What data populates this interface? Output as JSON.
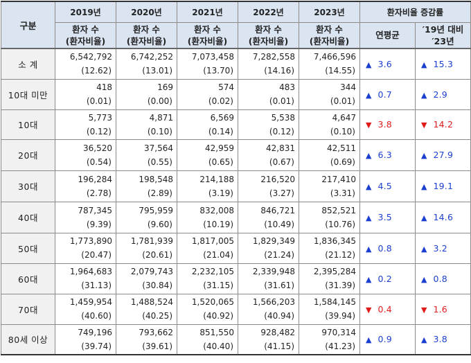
{
  "header": {
    "category": "구분",
    "years": [
      "2019년",
      "2020년",
      "2021년",
      "2022년",
      "2023년"
    ],
    "patients_label": "환자 수",
    "ratio_label": "(환자비율)",
    "change_group": "환자비율 증감률",
    "annual_avg": "연평균",
    "vs_line1": "′19년 대비",
    "vs_line2": "′23년"
  },
  "rows": [
    {
      "label": "소 계",
      "values": [
        {
          "n": "6,542,792",
          "r": "(12.62)"
        },
        {
          "n": "6,742,252",
          "r": "(13.01)"
        },
        {
          "n": "7,073,458",
          "r": "(13.70)"
        },
        {
          "n": "7,282,558",
          "r": "(14.16)"
        },
        {
          "n": "7,466,596",
          "r": "(14.55)"
        }
      ],
      "avg": {
        "dir": "up",
        "sym": "▲",
        "val": "3.6"
      },
      "vs": {
        "dir": "up",
        "sym": "▲",
        "val": "15.3"
      }
    },
    {
      "label": "10대 미만",
      "values": [
        {
          "n": "418",
          "r": "(0.01)"
        },
        {
          "n": "169",
          "r": "(0.00)"
        },
        {
          "n": "574",
          "r": "(0.02)"
        },
        {
          "n": "483",
          "r": "(0.01)"
        },
        {
          "n": "344",
          "r": "(0.01)"
        }
      ],
      "avg": {
        "dir": "up",
        "sym": "▲",
        "val": "0.7"
      },
      "vs": {
        "dir": "up",
        "sym": "▲",
        "val": "2.9"
      }
    },
    {
      "label": "10대",
      "values": [
        {
          "n": "5,773",
          "r": "(0.12)"
        },
        {
          "n": "4,871",
          "r": "(0.10)"
        },
        {
          "n": "6,569",
          "r": "(0.14)"
        },
        {
          "n": "5,538",
          "r": "(0.12)"
        },
        {
          "n": "4,647",
          "r": "(0.10)"
        }
      ],
      "avg": {
        "dir": "down",
        "sym": "▼",
        "val": "3.8"
      },
      "vs": {
        "dir": "down",
        "sym": "▼",
        "val": "14.2"
      }
    },
    {
      "label": "20대",
      "values": [
        {
          "n": "36,520",
          "r": "(0.54)"
        },
        {
          "n": "37,564",
          "r": "(0.55)"
        },
        {
          "n": "42,959",
          "r": "(0.65)"
        },
        {
          "n": "42,831",
          "r": "(0.67)"
        },
        {
          "n": "42,511",
          "r": "(0.69)"
        }
      ],
      "avg": {
        "dir": "up",
        "sym": "▲",
        "val": "6.3"
      },
      "vs": {
        "dir": "up",
        "sym": "▲",
        "val": "27.9"
      }
    },
    {
      "label": "30대",
      "values": [
        {
          "n": "196,284",
          "r": "(2.78)"
        },
        {
          "n": "198,548",
          "r": "(2.89)"
        },
        {
          "n": "214,188",
          "r": "(3.19)"
        },
        {
          "n": "216,520",
          "r": "(3.27)"
        },
        {
          "n": "217,410",
          "r": "(3.31)"
        }
      ],
      "avg": {
        "dir": "up",
        "sym": "▲",
        "val": "4.5"
      },
      "vs": {
        "dir": "up",
        "sym": "▲",
        "val": "19.1"
      }
    },
    {
      "label": "40대",
      "values": [
        {
          "n": "787,345",
          "r": "(9.39)"
        },
        {
          "n": "795,959",
          "r": "(9.60)"
        },
        {
          "n": "832,008",
          "r": "(10.19)"
        },
        {
          "n": "846,721",
          "r": "(10.49)"
        },
        {
          "n": "852,521",
          "r": "(10.76)"
        }
      ],
      "avg": {
        "dir": "up",
        "sym": "▲",
        "val": "3.5"
      },
      "vs": {
        "dir": "up",
        "sym": "▲",
        "val": "14.6"
      }
    },
    {
      "label": "50대",
      "values": [
        {
          "n": "1,773,890",
          "r": "(20.47)"
        },
        {
          "n": "1,781,939",
          "r": "(20.61)"
        },
        {
          "n": "1,817,005",
          "r": "(21.04)"
        },
        {
          "n": "1,829,349",
          "r": "(21.24)"
        },
        {
          "n": "1,836,345",
          "r": "(21.12)"
        }
      ],
      "avg": {
        "dir": "up",
        "sym": "▲",
        "val": "0.8"
      },
      "vs": {
        "dir": "up",
        "sym": "▲",
        "val": "3.2"
      }
    },
    {
      "label": "60대",
      "values": [
        {
          "n": "1,964,683",
          "r": "(31.13)"
        },
        {
          "n": "2,079,743",
          "r": "(30.84)"
        },
        {
          "n": "2,232,105",
          "r": "(31.15)"
        },
        {
          "n": "2,339,948",
          "r": "(31.61)"
        },
        {
          "n": "2,395,284",
          "r": "(31.39)"
        }
      ],
      "avg": {
        "dir": "up",
        "sym": "▲",
        "val": "0.2"
      },
      "vs": {
        "dir": "up",
        "sym": "▲",
        "val": "0.8"
      }
    },
    {
      "label": "70대",
      "values": [
        {
          "n": "1,459,954",
          "r": "(40.60)"
        },
        {
          "n": "1,488,524",
          "r": "(40.25)"
        },
        {
          "n": "1,520,065",
          "r": "(40.92)"
        },
        {
          "n": "1,566,203",
          "r": "(40.94)"
        },
        {
          "n": "1,584,145",
          "r": "(39.94)"
        }
      ],
      "avg": {
        "dir": "down",
        "sym": "▼",
        "val": "0.4"
      },
      "vs": {
        "dir": "down",
        "sym": "▼",
        "val": "1.6"
      }
    },
    {
      "label": "80세 이상",
      "values": [
        {
          "n": "749,196",
          "r": "(39.74)"
        },
        {
          "n": "793,662",
          "r": "(39.61)"
        },
        {
          "n": "851,550",
          "r": "(40.40)"
        },
        {
          "n": "928,482",
          "r": "(41.15)"
        },
        {
          "n": "970,314",
          "r": "(41.23)"
        }
      ],
      "avg": {
        "dir": "up",
        "sym": "▲",
        "val": "0.9"
      },
      "vs": {
        "dir": "up",
        "sym": "▲",
        "val": "3.8"
      }
    }
  ],
  "colors": {
    "up": "#1b3fcf",
    "down": "#e01b1b",
    "header_bg": "#dbe5f1",
    "label_bg": "#f1f1f1"
  }
}
